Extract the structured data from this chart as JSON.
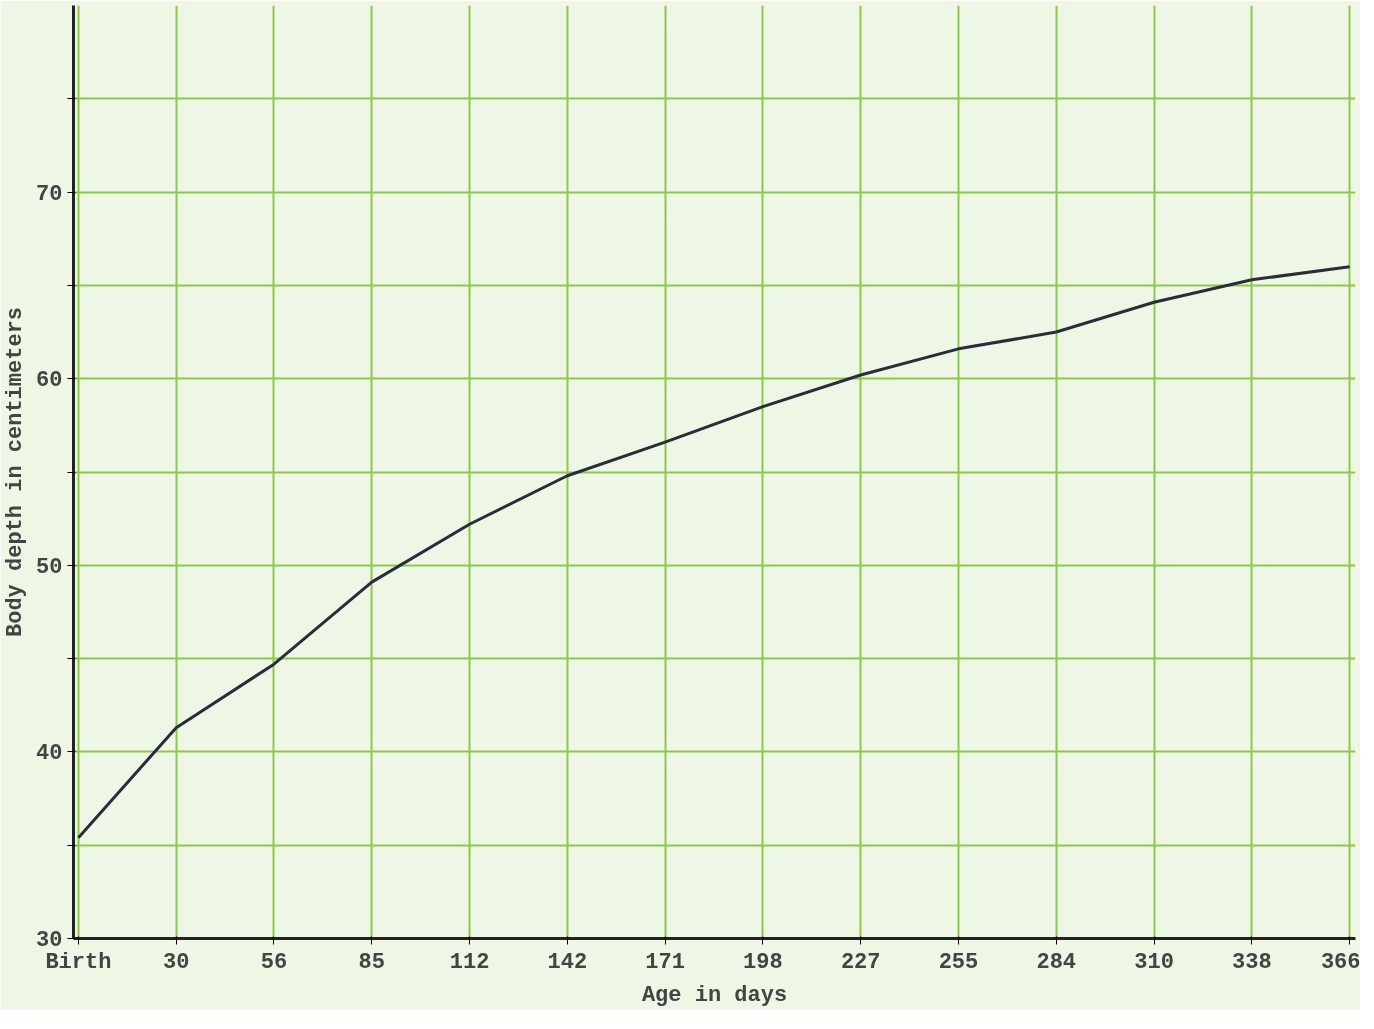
{
  "chart_data": {
    "type": "line",
    "xlabel": "Age in days",
    "ylabel": "Body depth in centimeters",
    "categories": [
      "Birth",
      "30",
      "56",
      "85",
      "112",
      "142",
      "171",
      "198",
      "227",
      "255",
      "284",
      "310",
      "338",
      "366"
    ],
    "series": [
      {
        "color": "#2b2b3a",
        "values": [
          35.4,
          41.3,
          44.7,
          49.1,
          52.2,
          54.8,
          56.6,
          58.5,
          60.2,
          61.6,
          62.5,
          64.1,
          65.3,
          66.0
        ]
      }
    ],
    "ylim": [
      30,
      80
    ],
    "yticks": [
      30,
      {
        "value": 35,
        "label": null
      },
      40,
      {
        "value": 45,
        "label": null
      },
      50,
      {
        "value": 55,
        "label": null
      },
      60,
      {
        "value": 65,
        "label": null
      },
      70,
      {
        "value": 75,
        "label": null
      }
    ],
    "grid": true,
    "marker": "none",
    "line_style": "solid"
  }
}
